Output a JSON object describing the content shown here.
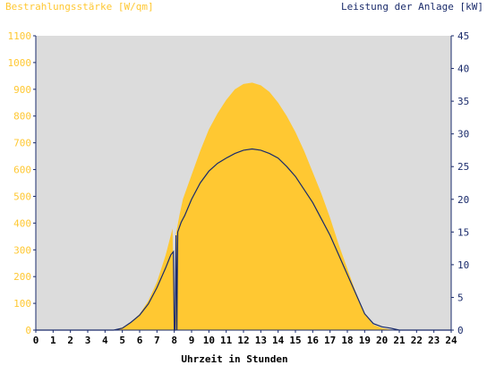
{
  "chart_data": {
    "type": "area",
    "title_left": "Bestrahlungsstärke [W/qm]",
    "title_right": "Leistung der Anlage [kW]",
    "xlabel": "Uhrzeit in Stunden",
    "x_ticks": [
      "0",
      "1",
      "2",
      "3",
      "4",
      "5",
      "6",
      "7",
      "8",
      "9",
      "10",
      "11",
      "12",
      "13",
      "14",
      "15",
      "16",
      "17",
      "18",
      "19",
      "20",
      "21",
      "22",
      "23",
      "24"
    ],
    "xlim": [
      0,
      24
    ],
    "y_left": {
      "ylim": [
        0,
        1100
      ],
      "ticks": [
        "0",
        "100",
        "200",
        "300",
        "400",
        "500",
        "600",
        "700",
        "800",
        "900",
        "1000",
        "1100"
      ]
    },
    "y_right": {
      "ylim": [
        0,
        45
      ],
      "ticks": [
        "0",
        "5",
        "10",
        "15",
        "20",
        "25",
        "30",
        "35",
        "40",
        "45"
      ]
    },
    "grid": false,
    "colors": {
      "plot_bg": "#dcdcdc",
      "irradiance": "#ffc832",
      "power": "#1a2b6b",
      "axis": "#1a2b6b"
    },
    "series": [
      {
        "axis": "left",
        "x": [
          0,
          4.5,
          5,
          5.5,
          6,
          6.5,
          7,
          7.5,
          7.9,
          8.0,
          8.05,
          8.1,
          8.3,
          8.5,
          9,
          9.5,
          10,
          10.5,
          11,
          11.5,
          12,
          12.5,
          13,
          13.5,
          14,
          14.5,
          15,
          15.5,
          16,
          16.5,
          17,
          17.5,
          18,
          18.5,
          19,
          19.5,
          20,
          20.5,
          21,
          24
        ],
        "values": [
          0,
          0,
          10,
          30,
          60,
          110,
          180,
          280,
          380,
          0,
          0,
          360,
          430,
          490,
          580,
          670,
          750,
          810,
          860,
          900,
          920,
          925,
          915,
          890,
          850,
          800,
          740,
          670,
          590,
          510,
          420,
          320,
          230,
          140,
          60,
          20,
          8,
          2,
          0,
          0
        ]
      },
      {
        "axis": "right",
        "x": [
          0,
          4.5,
          5,
          5.5,
          6,
          6.5,
          7,
          7.5,
          7.8,
          7.95,
          8.0,
          8.05,
          8.1,
          8.15,
          8.2,
          8.4,
          8.6,
          9,
          9.5,
          10,
          10.5,
          11,
          11.5,
          12,
          12.5,
          13,
          13.5,
          14,
          14.5,
          15,
          15.5,
          16,
          16.5,
          17,
          17.5,
          18,
          18.5,
          19,
          19.5,
          20,
          20.5,
          21,
          24
        ],
        "values": [
          0,
          0,
          0.3,
          1.2,
          2.3,
          4.0,
          6.5,
          9.5,
          11.5,
          12.0,
          0,
          0,
          14.5,
          0,
          15.0,
          16.5,
          17.5,
          20.0,
          22.5,
          24.3,
          25.5,
          26.3,
          27.0,
          27.5,
          27.7,
          27.5,
          27.0,
          26.3,
          25.0,
          23.5,
          21.5,
          19.5,
          17.0,
          14.5,
          11.5,
          8.5,
          5.5,
          2.5,
          1.0,
          0.5,
          0.3,
          0,
          0
        ]
      }
    ]
  }
}
